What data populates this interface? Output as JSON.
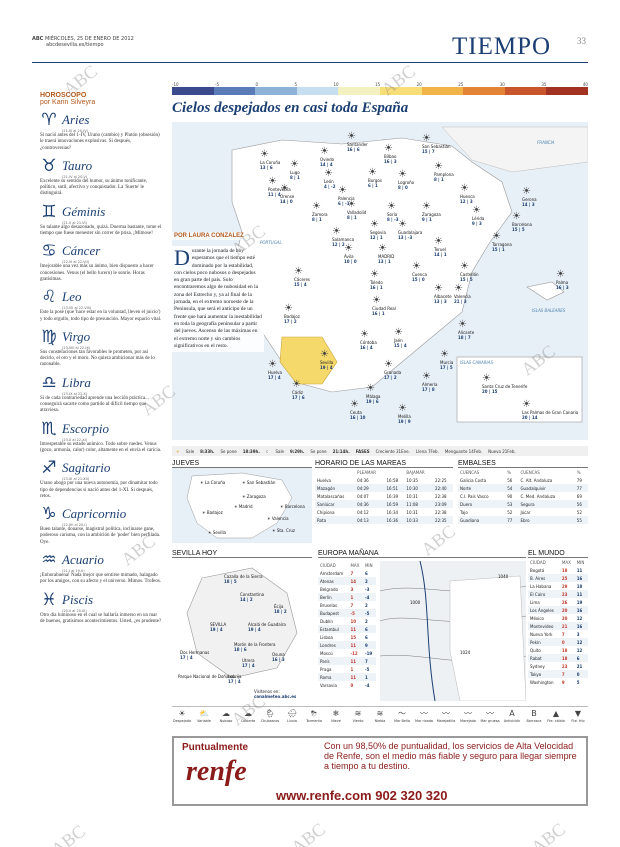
{
  "header": {
    "brand": "ABC",
    "date": "MIÉRCOLES, 25 DE ENERO DE 2012",
    "url": "abcdesevilla.es/tiempo",
    "section": "TIEMPO",
    "page": "33"
  },
  "horoscope": {
    "title": "HORÓSCOPO",
    "author": "por Karin Silveyra",
    "signs": [
      {
        "glyph": "♈",
        "name": "Aries",
        "dates": "(21-III al 20-IV)",
        "text": "Si nació antes del 1-IV, Urano (cambio) y Plutón (obsesión) le traerá innovaciones explosivas. Si después, ¿controversias?"
      },
      {
        "glyph": "♉",
        "name": "Tauro",
        "dates": "(21-IV al 20-V)",
        "text": "Excelente su sentido del humor, su ánimo tonificante, político, sutil, afectivo y conquistador. La 'Suerte' le distinguirá."
      },
      {
        "glyph": "♊",
        "name": "Géminis",
        "dates": "(21-V al 21-VI)",
        "text": "Su talante algo desazonado, quizá. Duerma bastante, tome el tiempo que fuese menester sin correr de prisa. ¡Mimose!"
      },
      {
        "glyph": "♋",
        "name": "Cáncer",
        "dates": "(22-VI al 22-VII)",
        "text": "Imejorable una vez más su ánimo, bien dispuesto a hacer concesiones. Venus (el bello lucero) le sonríe. Horas gratísimas."
      },
      {
        "glyph": "♌",
        "name": "Leo",
        "dates": "(23-VII al 22-VIII)",
        "text": "Este la pose (que 'hace estar en la voluntad, lleven el juicio') y todo orgullo, todo tipo de presunción. Mayor espacio vital."
      },
      {
        "glyph": "♍",
        "name": "Virgo",
        "dates": "(23-VIII al 22-IX)",
        "text": "Sus constelaciones tan favorables le prometen, por así decirlo, el oro y el moro. No quiera ambicionar más de lo razonable."
      },
      {
        "glyph": "♎",
        "name": "Libra",
        "dates": "(23-IX al 22-X)",
        "text": "Si de cada contrariedad aprende una lección práctica... conseguirá sacarte como partido al difícil tiempo que atraviesa."
      },
      {
        "glyph": "♏",
        "name": "Escorpio",
        "dates": "(23-X al 22-XI)",
        "text": "Imrespetable su estado anímico. Todo sobre ruedes. Venus (gozo, armonía, calor) color, altamente en el envía el caricia."
      },
      {
        "glyph": "♐",
        "name": "Sagitario",
        "dates": "(23-XI al 21-XII)",
        "text": "Urano abogo por una nueva autonomía, por dinamitar todo tipo de dependencias si nació antes del 1-XI. Si después, retos."
      },
      {
        "glyph": "♑",
        "name": "Capricornio",
        "dates": "(22-XII al 20-I)",
        "text": "Buen talante, donarse, magistral política, inclinarse gane, poderoso carisma, con la ambición de 'poder' bien perfilada. Oye."
      },
      {
        "glyph": "♒",
        "name": "Acuario",
        "dates": "(21-I al 19-II)",
        "text": "¡Enhorabuena! Nada mejor que sentirse mimado, halagado por los amigos, con su afecto y el universo. Mimos. Trofeos."
      },
      {
        "glyph": "♓",
        "name": "Piscis",
        "dates": "(20-II al 20-III)",
        "text": "Otro día luminoso en el cual se hallaría inmerso en un mar de buenos, gratísimos acontecimientos. Usted, ¿es prudente?"
      }
    ]
  },
  "scale": {
    "labels": [
      "-10",
      "-5",
      "0",
      "5",
      "10",
      "15",
      "20",
      "25",
      "30",
      "35",
      "40"
    ],
    "colors": [
      "#3b4a8c",
      "#5b7bb8",
      "#8fb2d8",
      "#c6dff0",
      "#f4f1c0",
      "#f7de77",
      "#f0b449",
      "#e28336",
      "#c8552b",
      "#a23221"
    ]
  },
  "headline": "Cielos despejados en casi toda España",
  "byline": "POR LAURA CONZALEZ",
  "article": "urante la jornada de hoy esperamos que el tiempo esté dominado por la estabilidad, con cielos poco nubosos o despejados en gran parte del país. Solo encontraremos algo de nubosidad en la zona del Estrecho y, ya al final de la jornada, en el extremo noroeste de la Peninsula, que será el anticipo de un frente que hará aumentar la inestabilidad en toda la geografía peninsular a partir del jueves. Ascenso de las máximas en el extremo norte y sin cambios significativos en el resto.",
  "dropcap": "D",
  "map": {
    "region_labels": [
      "FRANCIA",
      "PORTUGAL",
      "ISLAS BALEARES",
      "ISLAS CANARIAS"
    ],
    "cities": [
      {
        "name": "La Coruña",
        "temps": "13 | 6"
      },
      {
        "name": "Oviedo",
        "temps": "14 | 4"
      },
      {
        "name": "Santander",
        "temps": "16 | 6"
      },
      {
        "name": "Bilbao",
        "temps": "16 | 3"
      },
      {
        "name": "San Sebastián",
        "temps": "15 | 7"
      },
      {
        "name": "Pamplona",
        "temps": "8 | 1"
      },
      {
        "name": "Lugo",
        "temps": "8 | 1"
      },
      {
        "name": "León",
        "temps": "4 | -2"
      },
      {
        "name": "Burgos",
        "temps": "6 | 1"
      },
      {
        "name": "Logroño",
        "temps": "8 | 0"
      },
      {
        "name": "Huesca",
        "temps": "12 | 3"
      },
      {
        "name": "Gerona",
        "temps": "14 | 3"
      },
      {
        "name": "Barcelona",
        "temps": "15 | 5"
      },
      {
        "name": "Pontevedra",
        "temps": "11 | 4"
      },
      {
        "name": "Orense",
        "temps": "14 | 0"
      },
      {
        "name": "Palencia",
        "temps": "6 | -1"
      },
      {
        "name": "Zamora",
        "temps": "8 | 1"
      },
      {
        "name": "Valladolid",
        "temps": "8 | 1"
      },
      {
        "name": "Soria",
        "temps": "8 | -3"
      },
      {
        "name": "Zaragoza",
        "temps": "9 | 1"
      },
      {
        "name": "Lérida",
        "temps": "9 | 3"
      },
      {
        "name": "Tarragona",
        "temps": "15 | 1"
      },
      {
        "name": "Salamanca",
        "temps": "12 | 2"
      },
      {
        "name": "Segovia",
        "temps": "12 | 1"
      },
      {
        "name": "Guadalajara",
        "temps": "13 | -3"
      },
      {
        "name": "Teruel",
        "temps": "14 | 1"
      },
      {
        "name": "Ávila",
        "temps": "10 | 0"
      },
      {
        "name": "MADRID",
        "temps": "13 | 1"
      },
      {
        "name": "Cuenca",
        "temps": "15 | 0"
      },
      {
        "name": "Castellón",
        "temps": "15 | 5"
      },
      {
        "name": "Cáceres",
        "temps": "15 | 4"
      },
      {
        "name": "Toledo",
        "temps": "16 | 1"
      },
      {
        "name": "Valencia",
        "temps": "21 | 3"
      },
      {
        "name": "Palma",
        "temps": "16 | 3"
      },
      {
        "name": "Badajoz",
        "temps": "17 | 2"
      },
      {
        "name": "Ciudad Real",
        "temps": "16 | 1"
      },
      {
        "name": "Albacete",
        "temps": "13 | 3"
      },
      {
        "name": "Alicante",
        "temps": "18 | 7"
      },
      {
        "name": "Córdoba",
        "temps": "16 | 4"
      },
      {
        "name": "Jaén",
        "temps": "15 | 4"
      },
      {
        "name": "Murcia",
        "temps": "17 | 5"
      },
      {
        "name": "Huelva",
        "temps": "17 | 4"
      },
      {
        "name": "Sevilla",
        "temps": "19 | 4"
      },
      {
        "name": "Granada",
        "temps": "17 | 2"
      },
      {
        "name": "Almería",
        "temps": "17 | 8"
      },
      {
        "name": "Cádiz",
        "temps": "17 | 6"
      },
      {
        "name": "Málaga",
        "temps": "19 | 6"
      },
      {
        "name": "Ceuta",
        "temps": "16 | 10"
      },
      {
        "name": "Melilla",
        "temps": "19 | 9"
      },
      {
        "name": "Santa Cruz de Tenerife",
        "temps": "20 | 15"
      },
      {
        "name": "Las Palmas de Gran Canaria",
        "temps": "20 | 14"
      }
    ]
  },
  "sunbar": {
    "sunrise_label": "Sale",
    "sunrise": "8:33h.",
    "sunset_label": "Se pone",
    "sunset": "18:39h.",
    "moonrise_label": "Sale",
    "moonrise": "9:29h.",
    "moonset_label": "Se pone",
    "moonset": "21:14h.",
    "phases": [
      "Creciente 31Ene.",
      "Llena 7Feb.",
      "Menguante 14Feb.",
      "Nueva 21Feb."
    ],
    "phases_label": "FASES"
  },
  "jueves": {
    "title": "JUEVES",
    "cities": [
      "La Coruña",
      "San Sebastián",
      "Zaragoza",
      "Madrid",
      "Barcelona",
      "Valencia",
      "Badajoz",
      "Sevilla",
      "Sta. Cruz"
    ]
  },
  "tides": {
    "title": "HORARIO DE LAS MAREAS",
    "headers": [
      "",
      "PLEAMAR",
      "",
      "BAJAMAR",
      ""
    ],
    "rows": [
      [
        "Huelva",
        "04:36",
        "16:58",
        "10:35",
        "22:25"
      ],
      [
        "Mazagón",
        "04:29",
        "16:51",
        "10:30",
        "22:40"
      ],
      [
        "Matalascañas",
        "04:07",
        "16:39",
        "10:31",
        "22:38"
      ],
      [
        "Sanlúcar",
        "04:36",
        "16:59",
        "11:08",
        "23:09"
      ],
      [
        "Chipiona",
        "04:12",
        "16:34",
        "10:31",
        "22:38"
      ],
      [
        "Rota",
        "04:13",
        "16:36",
        "10:33",
        "22:35"
      ]
    ]
  },
  "reservoirs": {
    "title": "EMBALSES",
    "headers": [
      "CUENCAS",
      "%",
      "CUENCAS",
      "%"
    ],
    "rows": [
      [
        "Galicia Costa",
        "56",
        "C. Alt. Andaluza",
        "79"
      ],
      [
        "Norte",
        "54",
        "Guadalquivir",
        "77"
      ],
      [
        "C.I. País Vasco",
        "90",
        "C. Med. Andaluza",
        "69"
      ],
      [
        "Duero",
        "53",
        "Segura",
        "56"
      ],
      [
        "Tajo",
        "52",
        "Júcar",
        "52"
      ],
      [
        "Guadiana",
        "77",
        "Ebro",
        "55"
      ]
    ]
  },
  "sevilla": {
    "title": "SEVILLA HOY",
    "places": [
      {
        "name": "Cazalla de la Sierra",
        "temps": "18 | 5"
      },
      {
        "name": "Constantina",
        "temps": "14 | 2"
      },
      {
        "name": "Écija",
        "temps": "18 | 2"
      },
      {
        "name": "SEVILLA",
        "temps": "19 | 4"
      },
      {
        "name": "Alcalá de Guadaíra",
        "temps": "19 | 4"
      },
      {
        "name": "Morón de la Frontera",
        "temps": "18 | 6"
      },
      {
        "name": "Dos Hermanas",
        "temps": "17 | 4"
      },
      {
        "name": "Utrera",
        "temps": "17 | 4"
      },
      {
        "name": "Osuna",
        "temps": "16 | 3"
      },
      {
        "name": "Parque Nacional de Doñana",
        "temps": ""
      },
      {
        "name": "Lebrija",
        "temps": "17 | 4"
      }
    ],
    "link_label": "Visítenos en:",
    "link": "canalmeteo.abc.es"
  },
  "europe": {
    "title": "EUROPA MAÑANA",
    "headers": [
      "CIUDAD",
      "MAX",
      "MIN"
    ],
    "rows": [
      [
        "Amsterdam",
        "7",
        "6"
      ],
      [
        "Atenas",
        "14",
        "2"
      ],
      [
        "Belgrado",
        "3",
        "-3"
      ],
      [
        "Berlín",
        "1",
        "-4"
      ],
      [
        "Bruselas",
        "7",
        "2"
      ],
      [
        "Budapest",
        "-5",
        "-5"
      ],
      [
        "Dublín",
        "10",
        "2"
      ],
      [
        "Estambul",
        "11",
        "6"
      ],
      [
        "Lisboa",
        "15",
        "6"
      ],
      [
        "Londres",
        "11",
        "9"
      ],
      [
        "Moscú",
        "-12",
        "-19"
      ],
      [
        "París",
        "11",
        "7"
      ],
      [
        "Praga",
        "1",
        "-5"
      ],
      [
        "Roma",
        "11",
        "1"
      ],
      [
        "Varsovia",
        "0",
        "-4"
      ]
    ],
    "isobars": [
      "1040",
      "1000",
      "1024"
    ]
  },
  "world": {
    "title": "EL MUNDO",
    "headers": [
      "CIUDAD",
      "MAX",
      "MIN"
    ],
    "rows": [
      [
        "Bogotá",
        "18",
        "11"
      ],
      [
        "B. Aires",
        "25",
        "16"
      ],
      [
        "La Habana",
        "29",
        "18"
      ],
      [
        "El Cairo",
        "23",
        "11"
      ],
      [
        "Lima",
        "26",
        "19"
      ],
      [
        "Los Ángeles",
        "20",
        "16"
      ],
      [
        "México",
        "20",
        "12"
      ],
      [
        "Montevideo",
        "21",
        "16"
      ],
      [
        "Nueva York",
        "7",
        "3"
      ],
      [
        "Pekín",
        "0",
        "12"
      ],
      [
        "Quito",
        "18",
        "12"
      ],
      [
        "Rabat",
        "18",
        "6"
      ],
      [
        "Sydney",
        "23",
        "21"
      ],
      [
        "Tokyo",
        "7",
        "0"
      ],
      [
        "Washington",
        "9",
        "5"
      ]
    ]
  },
  "legend": [
    {
      "icon": "☀",
      "label": "Despejado"
    },
    {
      "icon": "⛅",
      "label": "Variable"
    },
    {
      "icon": "☁",
      "label": "Nuboso"
    },
    {
      "icon": "☁",
      "label": "Cubierto"
    },
    {
      "icon": "🌦",
      "label": "Chubascos"
    },
    {
      "icon": "🌧",
      "label": "Lluvia"
    },
    {
      "icon": "⛈",
      "label": "Tormenta"
    },
    {
      "icon": "❄",
      "label": "Nieve"
    },
    {
      "icon": "≋",
      "label": "Viento"
    },
    {
      "icon": "≋",
      "label": "Niebla"
    },
    {
      "icon": "〜",
      "label": "Mar Bella"
    },
    {
      "icon": "〰",
      "label": "Mar rizada"
    },
    {
      "icon": "〰",
      "label": "Marejadilla"
    },
    {
      "icon": "〰",
      "label": "Marejada"
    },
    {
      "icon": "〰",
      "label": "Mar gruesa"
    },
    {
      "icon": "A",
      "label": "Anticiclón"
    },
    {
      "icon": "B",
      "label": "Borrasca"
    },
    {
      "icon": "▲",
      "label": "Fte. cálido"
    },
    {
      "icon": "▼",
      "label": "Fte. frío"
    }
  ],
  "ad": {
    "kicker": "Puntualmente",
    "logo": "renfe",
    "text": "Con un 98,50% de puntualidad, los servicios de Alta Velocidad de Renfe, son el medio más fiable y seguro para llegar siempre a tiempo a tu destino.",
    "url": "www.renfe.com  902 320 320"
  },
  "watermark": "ABC"
}
